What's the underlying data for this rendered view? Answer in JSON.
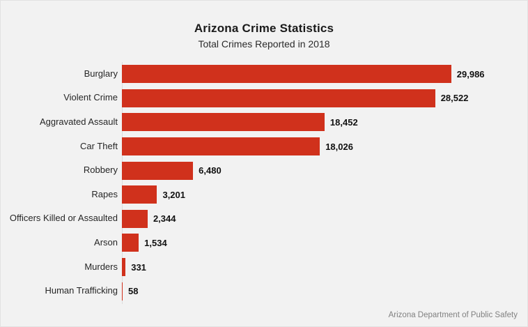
{
  "header": {
    "title": "Arizona Crime Statistics",
    "subtitle": "Total Crimes Reported in 2018"
  },
  "footer": {
    "attribution": "Arizona Department of Public Safety"
  },
  "chart_data": {
    "type": "bar",
    "orientation": "horizontal",
    "title": "Arizona Crime Statistics",
    "subtitle": "Total Crimes Reported in 2018",
    "categories": [
      "Burglary",
      "Violent Crime",
      "Aggravated Assault",
      "Car Theft",
      "Robbery",
      "Rapes",
      "Officers Killed or Assaulted",
      "Arson",
      "Murders",
      "Human Trafficking"
    ],
    "values": [
      29986,
      28522,
      18452,
      18026,
      6480,
      3201,
      2344,
      1534,
      331,
      58
    ],
    "value_labels": [
      "29,986",
      "28,522",
      "18,452",
      "18,026",
      "6,480",
      "3,201",
      "2,344",
      "1,534",
      "331",
      "58"
    ],
    "xlabel": "",
    "ylabel": "",
    "xlim": [
      0,
      30000
    ],
    "grid": "off",
    "legend": "none",
    "bar_color": "#d0311c",
    "background_color": "#f2f2f2",
    "attribution": "Arizona Department of Public Safety"
  }
}
